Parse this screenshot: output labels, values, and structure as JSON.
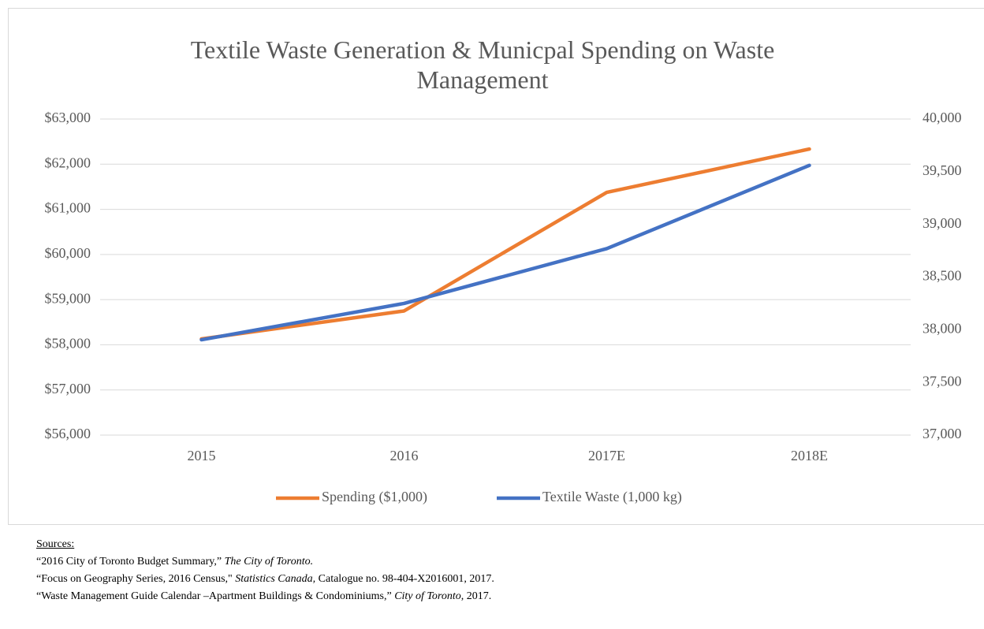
{
  "chart_data": {
    "type": "line",
    "title": "Textile Waste Generation & Municpal Spending on Waste Management",
    "categories": [
      "2015",
      "2016",
      "2017E",
      "2018E"
    ],
    "series": [
      {
        "name": "Spending ($1,000)",
        "color": "#ed7d31",
        "axis": "y",
        "values": [
          58130,
          58750,
          61375,
          62335
        ]
      },
      {
        "name": "Textile Waste (1,000 kg)",
        "color": "#4472c4",
        "axis": "y2",
        "values": [
          37905,
          38250,
          38770,
          39560
        ]
      }
    ],
    "ylim": [
      56000,
      63000
    ],
    "yticks": [
      {
        "value": 56000,
        "label": "$56,000"
      },
      {
        "value": 57000,
        "label": "$57,000"
      },
      {
        "value": 58000,
        "label": "$58,000"
      },
      {
        "value": 59000,
        "label": "$59,000"
      },
      {
        "value": 60000,
        "label": "$60,000"
      },
      {
        "value": 61000,
        "label": "$61,000"
      },
      {
        "value": 62000,
        "label": "$62,000"
      },
      {
        "value": 63000,
        "label": "$63,000"
      }
    ],
    "y2lim": [
      37000,
      40000
    ],
    "y2ticks": [
      {
        "value": 37000,
        "label": "37,000"
      },
      {
        "value": 37500,
        "label": "37,500"
      },
      {
        "value": 38000,
        "label": "38,000"
      },
      {
        "value": 38500,
        "label": "38,500"
      },
      {
        "value": 39000,
        "label": "39,000"
      },
      {
        "value": 39500,
        "label": "39,500"
      },
      {
        "value": 40000,
        "label": "40,000"
      }
    ],
    "grid": true,
    "legend": "bottom"
  },
  "sources": {
    "heading": "Sources:",
    "items": [
      {
        "parts": [
          "“2016 City of Toronto Budget Summary,” ",
          "The City of Toronto."
        ],
        "italic": [
          false,
          true
        ]
      },
      {
        "parts": [
          "“Focus on Geography Series, 2016 Census,\" ",
          "Statistics Canada,",
          " Catalogue no. 98-404-X2016001, 2017."
        ],
        "italic": [
          false,
          true,
          false
        ]
      },
      {
        "parts": [
          "“Waste Management Guide Calendar –Apartment Buildings & Condominiums,” ",
          "City of Toronto",
          ", 2017."
        ],
        "italic": [
          false,
          true,
          false
        ]
      }
    ]
  }
}
